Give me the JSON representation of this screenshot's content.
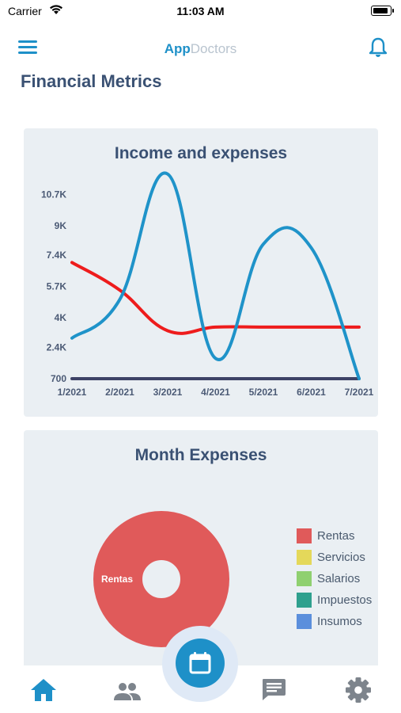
{
  "status_bar": {
    "carrier": "Carrier",
    "time": "11:03 AM"
  },
  "header": {
    "brand_part1": "App",
    "brand_part2": "Doctors"
  },
  "page": {
    "title": "Financial Metrics"
  },
  "colors": {
    "accent": "#1e90c8",
    "income_line": "#1f93c9",
    "expenses_line": "#ee1c1c",
    "baseline": "#3d4266",
    "card_bg": "#eaeff3"
  },
  "chart_data": [
    {
      "type": "line",
      "title": "Income and expenses",
      "categories": [
        "1/2021",
        "2/2021",
        "3/2021",
        "4/2021",
        "5/2021",
        "6/2021",
        "7/2021"
      ],
      "y_tick_labels": [
        "700",
        "2.4K",
        "4K",
        "5.7K",
        "7.4K",
        "9K",
        "10.7K"
      ],
      "y_ticks": [
        700,
        2400,
        4000,
        5700,
        7400,
        9000,
        10700
      ],
      "ylim": [
        700,
        12000
      ],
      "grid": false,
      "legend": "none",
      "series": [
        {
          "values": [
            2900,
            5000,
            11800,
            1800,
            8000,
            7800,
            700
          ],
          "color": "#1f93c9"
        },
        {
          "values": [
            7000,
            5500,
            3300,
            3500,
            3500,
            3500,
            3500
          ],
          "color": "#ee1c1c"
        },
        {
          "values": [
            700,
            700,
            700,
            700,
            700,
            700,
            700
          ],
          "color": "#3d4266"
        }
      ]
    },
    {
      "type": "pie",
      "title": "Month Expenses",
      "legend": "right",
      "slices": [
        {
          "label": "Rentas",
          "value": 100,
          "color": "#e05a5a"
        },
        {
          "label": "Servicios",
          "value": 0,
          "color": "#e4d85a"
        },
        {
          "label": "Salarios",
          "value": 0,
          "color": "#8fd070"
        },
        {
          "label": "Impuestos",
          "value": 0,
          "color": "#2fa08e"
        },
        {
          "label": "Insumos",
          "value": 0,
          "color": "#5b8fdc"
        }
      ]
    }
  ],
  "nav": {
    "tabs": [
      "home-icon",
      "people-icon",
      "calendar-icon",
      "chat-icon",
      "gear-icon"
    ],
    "active": "home-icon"
  }
}
